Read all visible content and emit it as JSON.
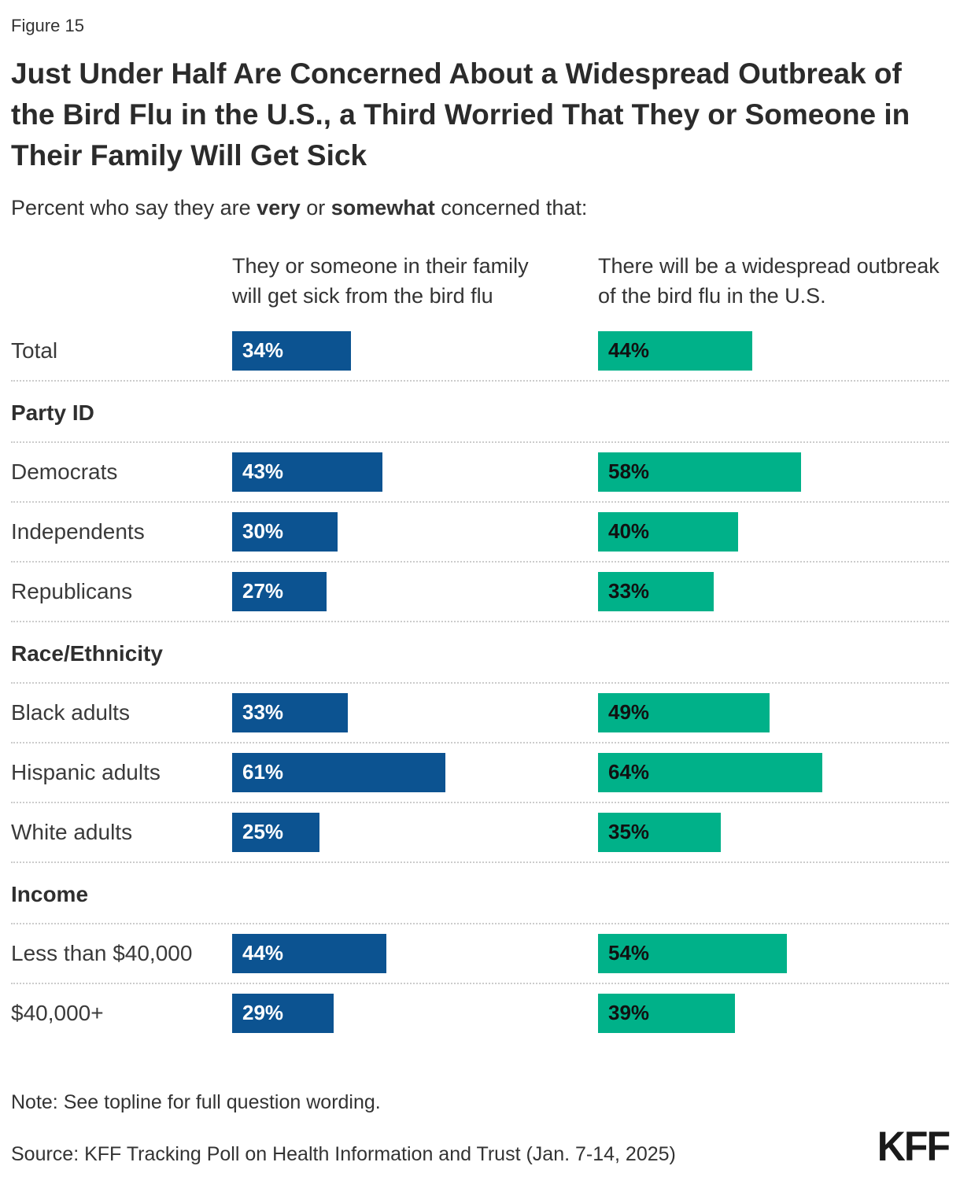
{
  "figure_label": "Figure 15",
  "title": "Just Under Half Are Concerned About a Widespread Outbreak of the Bird Flu in the U.S., a Third Worried That They or Someone in Their Family Will Get Sick",
  "subtitle": {
    "prefix": "Percent who say they are ",
    "bold_1": "very",
    "middle": " or ",
    "bold_2": "somewhat",
    "suffix": " concerned that:"
  },
  "columns": [
    {
      "header": "They or someone in their family will get sick from the bird flu",
      "bar_color": "#0C5391",
      "value_text_color": "#ffffff"
    },
    {
      "header": "There will be a widespread outbreak of the bird flu in the U.S.",
      "bar_color": "#00B189",
      "value_text_color": "#111111"
    }
  ],
  "rows": [
    {
      "type": "bar",
      "label": "Total",
      "values": [
        34,
        44
      ]
    },
    {
      "type": "section",
      "label": "Party ID"
    },
    {
      "type": "bar",
      "label": "Democrats",
      "values": [
        43,
        58
      ]
    },
    {
      "type": "bar",
      "label": "Independents",
      "values": [
        30,
        40
      ]
    },
    {
      "type": "bar",
      "label": "Republicans",
      "values": [
        27,
        33
      ]
    },
    {
      "type": "section",
      "label": "Race/Ethnicity"
    },
    {
      "type": "bar",
      "label": "Black adults",
      "values": [
        33,
        49
      ]
    },
    {
      "type": "bar",
      "label": "Hispanic adults",
      "values": [
        61,
        64
      ]
    },
    {
      "type": "bar",
      "label": "White adults",
      "values": [
        25,
        35
      ]
    },
    {
      "type": "section",
      "label": "Income"
    },
    {
      "type": "bar",
      "label": "Less than $40,000",
      "values": [
        44,
        54
      ]
    },
    {
      "type": "bar",
      "label": "$40,000+",
      "values": [
        29,
        39
      ]
    }
  ],
  "chart_data": {
    "type": "bar",
    "orientation": "horizontal",
    "title": "Just Under Half Are Concerned About a Widespread Outbreak of the Bird Flu in the U.S., a Third Worried That They or Someone in Their Family Will Get Sick",
    "subtitle": "Percent who say they are very or somewhat concerned that:",
    "categories": [
      "Total",
      "Democrats",
      "Independents",
      "Republicans",
      "Black adults",
      "Hispanic adults",
      "White adults",
      "Less than $40,000",
      "$40,000+"
    ],
    "category_groups": {
      "Party ID": [
        "Democrats",
        "Independents",
        "Republicans"
      ],
      "Race/Ethnicity": [
        "Black adults",
        "Hispanic adults",
        "White adults"
      ],
      "Income": [
        "Less than $40,000",
        "$40,000+"
      ]
    },
    "series": [
      {
        "name": "They or someone in their family will get sick from the bird flu",
        "color": "#0C5391",
        "values": [
          34,
          43,
          30,
          27,
          33,
          61,
          25,
          44,
          29
        ]
      },
      {
        "name": "There will be a widespread outbreak of the bird flu in the U.S.",
        "color": "#00B189",
        "values": [
          44,
          58,
          40,
          33,
          49,
          64,
          35,
          54,
          39
        ]
      }
    ],
    "value_format": "percent",
    "xlim": [
      0,
      100
    ],
    "data_labels": "inside-start",
    "legend_position": "column-headers",
    "grid": false
  },
  "footer": {
    "note": "Note: See topline for full question wording.",
    "source": "Source: KFF Tracking Poll on Health Information and Trust (Jan. 7-14, 2025)",
    "logo": "KFF"
  }
}
